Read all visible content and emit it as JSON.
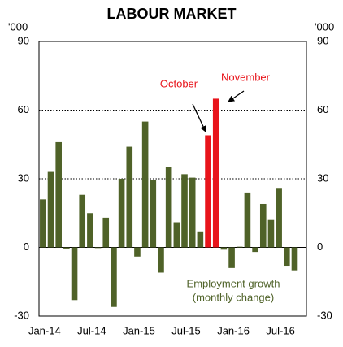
{
  "chart_data": {
    "type": "bar",
    "title": "LABOUR MARKET",
    "y_unit": "'000",
    "y2_unit": "'000",
    "categories": [
      "Jan-14",
      null,
      null,
      null,
      null,
      null,
      "Jul-14",
      null,
      null,
      null,
      null,
      null,
      "Jan-15",
      null,
      null,
      null,
      null,
      null,
      "Jul-15",
      null,
      null,
      null,
      null,
      null,
      "Jan-16",
      null,
      null,
      null,
      null,
      null,
      "Jul-16",
      null,
      null
    ],
    "values": [
      21,
      33,
      46,
      -0.5,
      -23,
      23,
      15,
      -0.3,
      13,
      -26,
      30,
      44,
      -4,
      55,
      29.5,
      -11,
      35,
      11,
      32,
      30.5,
      7,
      49,
      65,
      -1,
      -9,
      0.3,
      24,
      -2,
      19,
      12,
      26,
      -8,
      -10
    ],
    "colors": [
      "#4f6228",
      "#4f6228",
      "#4f6228",
      "#4f6228",
      "#4f6228",
      "#4f6228",
      "#4f6228",
      "#4f6228",
      "#4f6228",
      "#4f6228",
      "#4f6228",
      "#4f6228",
      "#4f6228",
      "#4f6228",
      "#4f6228",
      "#4f6228",
      "#4f6228",
      "#4f6228",
      "#4f6228",
      "#4f6228",
      "#4f6228",
      "#e8141b",
      "#e8141b",
      "#4f6228",
      "#4f6228",
      "#4f6228",
      "#4f6228",
      "#4f6228",
      "#4f6228",
      "#4f6228",
      "#4f6228",
      "#4f6228",
      "#4f6228"
    ],
    "ylim": [
      -30,
      90
    ],
    "yticks": [
      -30,
      0,
      30,
      60,
      90
    ],
    "y2lim": [
      -30,
      90
    ],
    "y2ticks": [
      -30,
      0,
      30,
      60,
      90
    ],
    "grid": true,
    "annotations": [
      "October",
      "November",
      "Employment growth",
      "(monthly change)"
    ]
  }
}
